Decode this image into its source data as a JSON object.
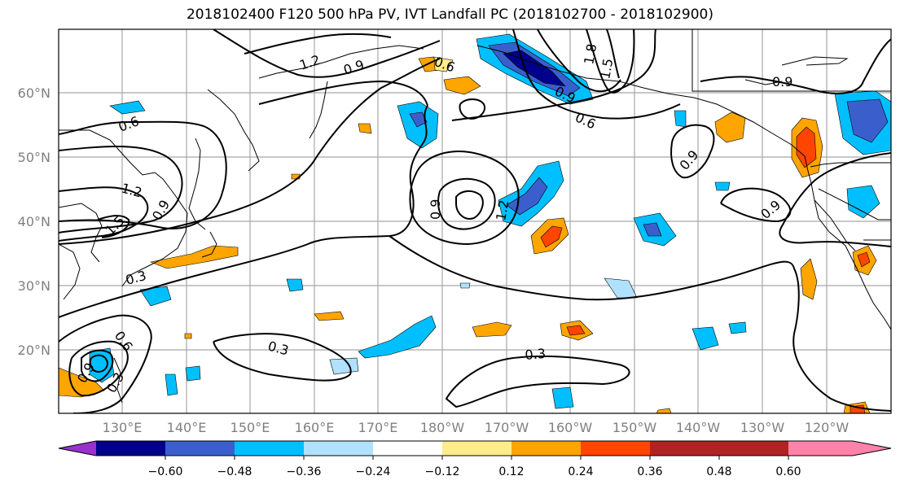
{
  "title": "2018102400 F120 500 hPa PV, IVT Landfall PC (2018102700 - 2018102900)",
  "lat_ticks": [
    "20°N",
    "30°N",
    "40°N",
    "50°N",
    "60°N"
  ],
  "lon_ticks": [
    "130°E",
    "140°E",
    "150°E",
    "160°E",
    "170°E",
    "180°W",
    "170°W",
    "160°W",
    "150°W",
    "140°W",
    "130°W",
    "120°W"
  ],
  "contour_labels": [
    "1.2",
    "0.9",
    "0.6",
    "1.8",
    "1.5",
    "0.9",
    "0.6",
    "0.6",
    "1.2",
    "0.9",
    "1.5",
    "0.3",
    "0.9",
    "1.2",
    "0.9",
    "0.9",
    "0.3",
    "0.3",
    "0.6",
    "0.9",
    "0.3"
  ],
  "colorbar": {
    "ticks": [
      "−0.60",
      "−0.48",
      "−0.36",
      "−0.24",
      "−0.12",
      "0.12",
      "0.24",
      "0.36",
      "0.48",
      "0.60"
    ],
    "colors": [
      "#9932cc",
      "#00008b",
      "#3a5fcd",
      "#00bfff",
      "#b0e2ff",
      "#ffffff",
      "#ffec8b",
      "#ffa500",
      "#ff4500",
      "#b22222",
      "#ff82ab"
    ]
  }
}
